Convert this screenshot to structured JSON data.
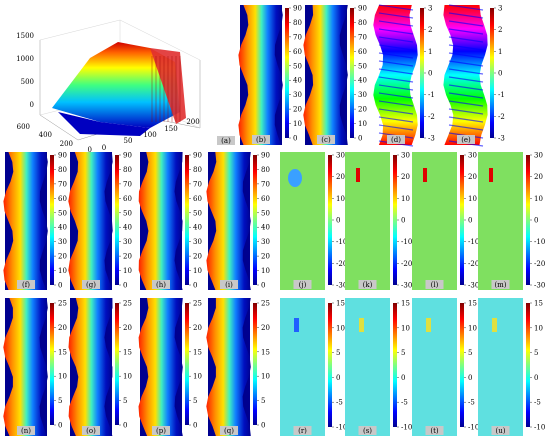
{
  "surface_panel": {
    "label": "(a)",
    "z_ticks": [
      "1500",
      "1000",
      "500",
      "0"
    ],
    "y_ticks": [
      "600",
      "400",
      "200",
      "0"
    ],
    "x_ticks": [
      "0",
      "50",
      "100",
      "150",
      "200"
    ]
  },
  "row1": [
    {
      "label": "(b)",
      "kind": "terrain",
      "ticks": [
        "90",
        "80",
        "70",
        "60",
        "50",
        "40",
        "30",
        "20",
        "10",
        "0"
      ]
    },
    {
      "label": "(c)",
      "kind": "terrain",
      "ticks": [
        "90",
        "80",
        "70",
        "60",
        "50",
        "40",
        "30",
        "20",
        "10",
        "0"
      ]
    },
    {
      "label": "(d)",
      "kind": "wrapped",
      "ticks": [
        "3",
        "2",
        "1",
        "0",
        "-1",
        "-2",
        "-3"
      ]
    },
    {
      "label": "(e)",
      "kind": "wrapped",
      "ticks": [
        "3",
        "2",
        "1",
        "0",
        "-1",
        "-2",
        "-3"
      ]
    }
  ],
  "row2_left": [
    {
      "label": "(f)",
      "ticks": [
        "90",
        "80",
        "70",
        "60",
        "50",
        "40",
        "30",
        "20",
        "10",
        "0"
      ]
    },
    {
      "label": "(g)",
      "ticks": [
        "90",
        "80",
        "70",
        "60",
        "50",
        "40",
        "30",
        "20",
        "10",
        "0"
      ]
    },
    {
      "label": "(h)",
      "ticks": [
        "90",
        "80",
        "70",
        "60",
        "50",
        "40",
        "30",
        "20",
        "10",
        "0"
      ]
    },
    {
      "label": "(i)",
      "ticks": [
        "90",
        "80",
        "70",
        "60",
        "50",
        "40",
        "30",
        "20",
        "10",
        "0"
      ]
    }
  ],
  "row2_right": [
    {
      "label": "(j)",
      "ticks": [
        "30",
        "20",
        "10",
        "0",
        "-10",
        "-20",
        "-30"
      ]
    },
    {
      "label": "(k)",
      "ticks": [
        "30",
        "20",
        "10",
        "0",
        "-10",
        "-20",
        "-30"
      ]
    },
    {
      "label": "(l)",
      "ticks": [
        "30",
        "20",
        "10",
        "0",
        "-10",
        "-20",
        "-30"
      ]
    },
    {
      "label": "(m)",
      "ticks": [
        "30",
        "20",
        "10",
        "0",
        "-10",
        "-20",
        "-30"
      ]
    }
  ],
  "row3_left": [
    {
      "label": "(n)",
      "ticks": [
        "25",
        "20",
        "15",
        "10",
        "5",
        "0"
      ]
    },
    {
      "label": "(o)",
      "ticks": [
        "25",
        "20",
        "15",
        "10",
        "5",
        "0"
      ]
    },
    {
      "label": "(p)",
      "ticks": [
        "25",
        "20",
        "15",
        "10",
        "5",
        "0"
      ]
    },
    {
      "label": "(q)",
      "ticks": [
        "25",
        "20",
        "15",
        "10",
        "5",
        "0"
      ]
    }
  ],
  "row3_right": [
    {
      "label": "(r)",
      "ticks": [
        "15",
        "10",
        "5",
        "0",
        "-5",
        "-10"
      ]
    },
    {
      "label": "(s)",
      "ticks": [
        "15",
        "10",
        "5",
        "0",
        "-5",
        "-10"
      ]
    },
    {
      "label": "(t)",
      "ticks": [
        "15",
        "10",
        "5",
        "0",
        "-5",
        "-10"
      ]
    },
    {
      "label": "(u)",
      "ticks": [
        "15",
        "10",
        "5",
        "0",
        "-5",
        "-10"
      ]
    }
  ]
}
